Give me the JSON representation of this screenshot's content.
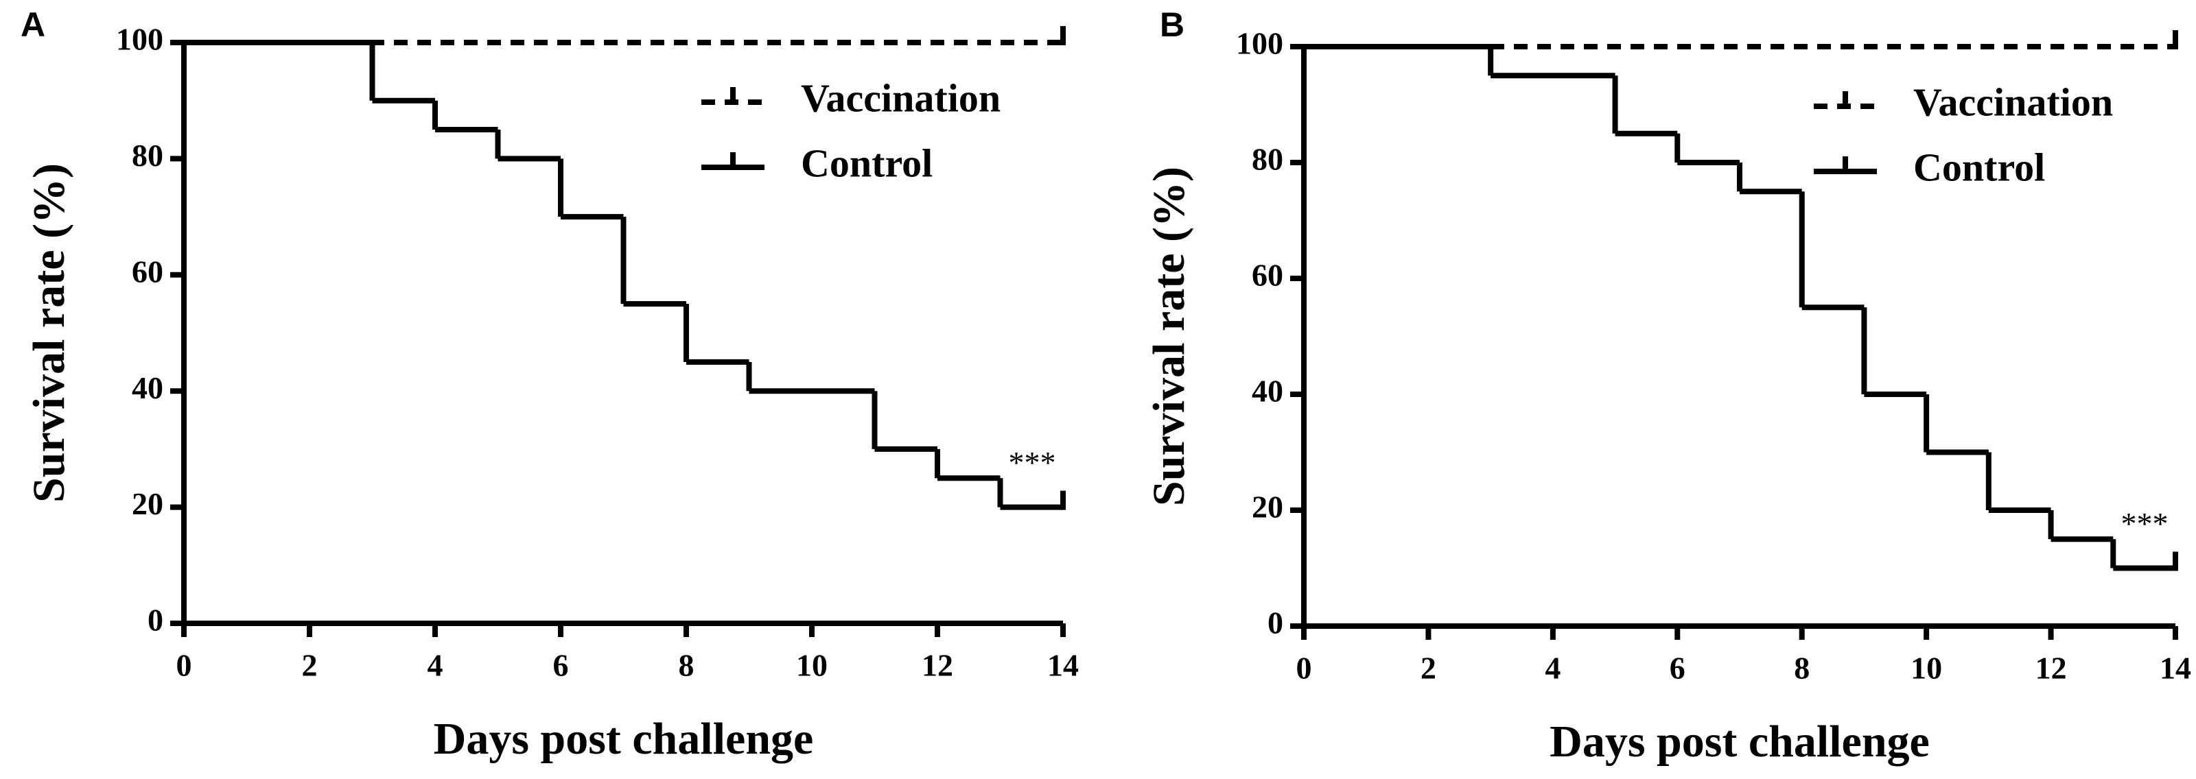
{
  "chart_data": [
    {
      "type": "step",
      "panel_label": "A",
      "xlabel": "Days post challenge",
      "ylabel": "Survival rate (%)",
      "xlim": [
        0,
        14
      ],
      "ylim": [
        0,
        100
      ],
      "xticks": [
        0,
        2,
        4,
        6,
        8,
        10,
        12,
        14
      ],
      "yticks": [
        0,
        20,
        40,
        60,
        80,
        100
      ],
      "grid": false,
      "legend": "upper right",
      "annotations": [
        "***"
      ],
      "series": [
        {
          "name": "Vaccination",
          "color": "#000000",
          "dash": true,
          "x": [
            0,
            14
          ],
          "values": [
            100,
            100
          ]
        },
        {
          "name": "Control",
          "color": "#000000",
          "dash": false,
          "x": [
            0,
            3,
            4,
            5,
            6,
            7,
            8,
            9,
            11,
            12,
            13,
            14
          ],
          "values": [
            100,
            90,
            85,
            80,
            70,
            55,
            45,
            40,
            30,
            25,
            20,
            20
          ]
        }
      ]
    },
    {
      "type": "step",
      "panel_label": "B",
      "xlabel": "Days post challenge",
      "ylabel": "Survival rate (%)",
      "xlim": [
        0,
        14
      ],
      "ylim": [
        0,
        100
      ],
      "xticks": [
        0,
        2,
        4,
        6,
        8,
        10,
        12,
        14
      ],
      "yticks": [
        0,
        20,
        40,
        60,
        80,
        100
      ],
      "grid": false,
      "legend": "upper right",
      "annotations": [
        "***"
      ],
      "series": [
        {
          "name": "Vaccination",
          "color": "#000000",
          "dash": true,
          "x": [
            0,
            14
          ],
          "values": [
            100,
            100
          ]
        },
        {
          "name": "Control",
          "color": "#000000",
          "dash": false,
          "x": [
            0,
            3,
            5,
            6,
            7,
            8,
            9,
            10,
            11,
            12,
            13,
            14
          ],
          "values": [
            100,
            95,
            85,
            80,
            75,
            55,
            40,
            30,
            20,
            15,
            10,
            10
          ]
        }
      ]
    }
  ]
}
